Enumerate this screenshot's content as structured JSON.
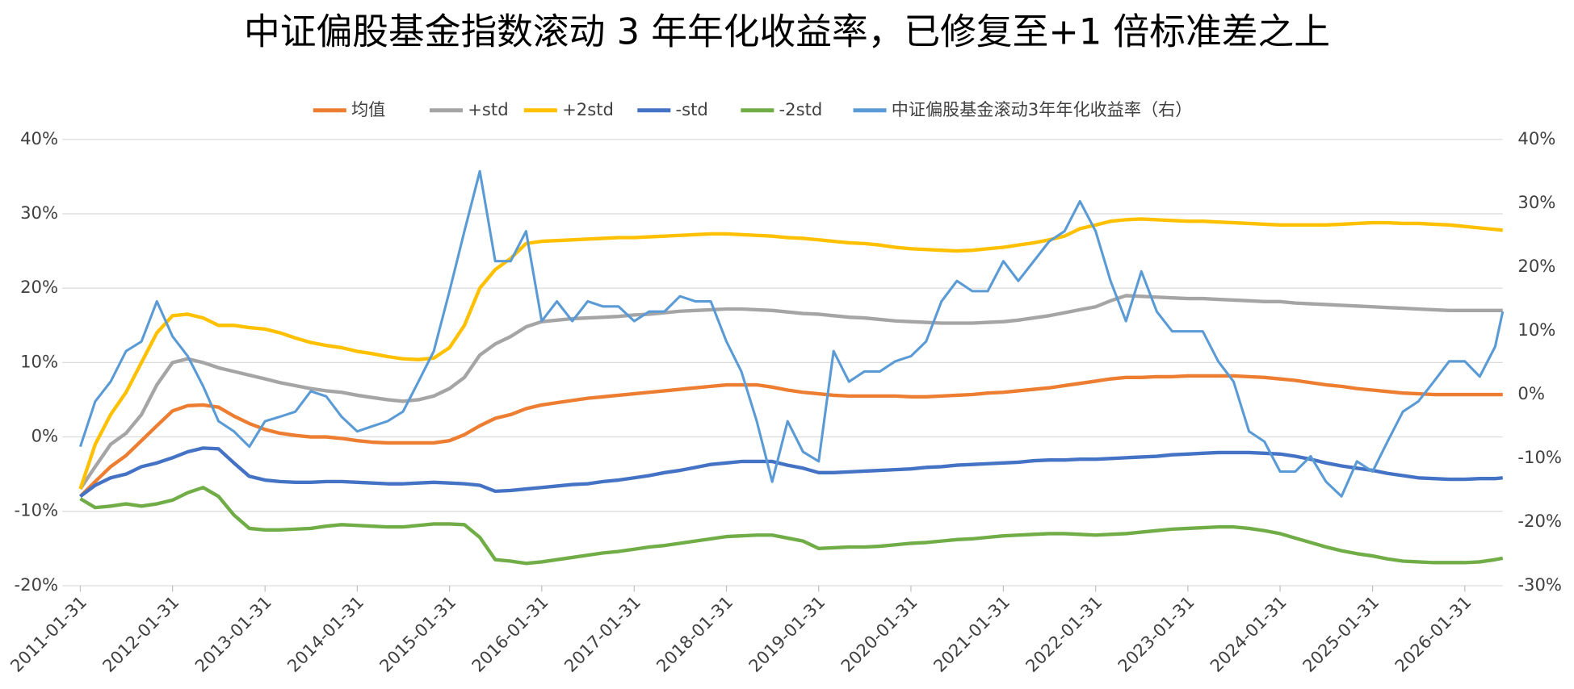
{
  "chart_data": {
    "type": "line",
    "title": "中证偏股基金指数滚动 3 年年化收益率，已修复至+1 倍标准差之上",
    "x": [
      "2011-01-31",
      "2011-03-31",
      "2011-05-31",
      "2011-07-31",
      "2011-09-30",
      "2011-11-30",
      "2012-01-31",
      "2012-03-31",
      "2012-05-31",
      "2012-07-31",
      "2012-09-30",
      "2012-11-30",
      "2013-01-31",
      "2013-03-31",
      "2013-05-31",
      "2013-07-31",
      "2013-09-30",
      "2013-11-30",
      "2014-01-31",
      "2014-03-31",
      "2014-05-31",
      "2014-07-31",
      "2014-09-30",
      "2014-11-30",
      "2015-01-31",
      "2015-03-31",
      "2015-05-31",
      "2015-07-31",
      "2015-09-30",
      "2015-11-30",
      "2016-01-31",
      "2016-03-31",
      "2016-05-31",
      "2016-07-31",
      "2016-09-30",
      "2016-11-30",
      "2017-01-31",
      "2017-03-31",
      "2017-05-31",
      "2017-07-31",
      "2017-09-30",
      "2017-11-30",
      "2018-01-31",
      "2018-03-31",
      "2018-05-31",
      "2018-07-31",
      "2018-09-30",
      "2018-11-30",
      "2019-01-31",
      "2019-03-31",
      "2019-05-31",
      "2019-07-31",
      "2019-09-30",
      "2019-11-30",
      "2020-01-31",
      "2020-03-31",
      "2020-05-31",
      "2020-07-31",
      "2020-09-30",
      "2020-11-30",
      "2021-01-31",
      "2021-03-31",
      "2021-05-31",
      "2021-07-31",
      "2021-09-30",
      "2021-11-30",
      "2022-01-31",
      "2022-03-31",
      "2022-05-31",
      "2022-07-31",
      "2022-09-30",
      "2022-11-30",
      "2023-01-31",
      "2023-03-31",
      "2023-05-31",
      "2023-07-31",
      "2023-09-30",
      "2023-11-30",
      "2024-01-31",
      "2024-03-31",
      "2024-05-31",
      "2024-07-31",
      "2024-09-30",
      "2024-11-30",
      "2025-01-31",
      "2025-03-31",
      "2025-05-31",
      "2025-07-31",
      "2025-09-30",
      "2025-11-30",
      "2026-01-31",
      "2026-03-31",
      "2026-05-31",
      "2026-06-30"
    ],
    "xlim": [
      "2011-01-31",
      "2026-06-30"
    ],
    "xticks": [
      "2011-01-31",
      "2012-01-31",
      "2013-01-31",
      "2014-01-31",
      "2015-01-31",
      "2016-01-31",
      "2017-01-31",
      "2018-01-31",
      "2019-01-31",
      "2020-01-31",
      "2021-01-31",
      "2022-01-31",
      "2023-01-31",
      "2024-01-31",
      "2025-01-31",
      "2026-01-31"
    ],
    "ylim": [
      -20,
      40
    ],
    "yticks": [
      {
        "value": -20,
        "label": "-20%"
      },
      {
        "value": -10,
        "label": "-10%"
      },
      {
        "value": 0,
        "label": "0%"
      },
      {
        "value": 10,
        "label": "10%"
      },
      {
        "value": 20,
        "label": "20%"
      },
      {
        "value": 30,
        "label": "30%"
      },
      {
        "value": 40,
        "label": "40%"
      }
    ],
    "y2lim": [
      -30,
      40
    ],
    "y2ticks": [
      {
        "value": -30,
        "label": "-30%"
      },
      {
        "value": -20,
        "label": "-20%"
      },
      {
        "value": -10,
        "label": "-10%"
      },
      {
        "value": 0,
        "label": "0%"
      },
      {
        "value": 10,
        "label": "10%"
      },
      {
        "value": 20,
        "label": "20%"
      },
      {
        "value": 30,
        "label": "30%"
      },
      {
        "value": 40,
        "label": "40%"
      }
    ],
    "grid": true,
    "legend": "top",
    "series": [
      {
        "name": "均值",
        "color": "#ED7D31",
        "values": [
          -8,
          -6,
          -4,
          -2.5,
          -0.5,
          1.5,
          3.5,
          4.2,
          4.3,
          4,
          2.8,
          1.8,
          1,
          0.5,
          0.2,
          0,
          0,
          -0.2,
          -0.5,
          -0.7,
          -0.8,
          -0.8,
          -0.8,
          -0.8,
          -0.5,
          0.3,
          1.5,
          2.5,
          3,
          3.8,
          4.3,
          4.6,
          4.9,
          5.2,
          5.4,
          5.6,
          5.8,
          6,
          6.2,
          6.4,
          6.6,
          6.8,
          7,
          7,
          7,
          6.7,
          6.3,
          6,
          5.8,
          5.6,
          5.5,
          5.5,
          5.5,
          5.5,
          5.4,
          5.4,
          5.5,
          5.6,
          5.7,
          5.9,
          6,
          6.2,
          6.4,
          6.6,
          6.9,
          7.2,
          7.5,
          7.8,
          8,
          8,
          8.1,
          8.1,
          8.2,
          8.2,
          8.2,
          8.2,
          8.1,
          8,
          7.8,
          7.6,
          7.3,
          7,
          6.8,
          6.5,
          6.3,
          6.1,
          5.9,
          5.8,
          5.7,
          5.7,
          5.7,
          5.7,
          5.7,
          5.7
        ]
      },
      {
        "name": "+std",
        "color": "#A5A5A5",
        "values": [
          -7,
          -4,
          -1,
          0.5,
          3,
          7,
          10,
          10.5,
          10,
          9.3,
          8.8,
          8.3,
          7.8,
          7.3,
          6.9,
          6.5,
          6.2,
          6,
          5.6,
          5.3,
          5,
          4.8,
          5,
          5.5,
          6.5,
          8,
          11,
          12.5,
          13.5,
          14.8,
          15.5,
          15.7,
          15.9,
          16,
          16.1,
          16.2,
          16.4,
          16.5,
          16.7,
          16.9,
          17,
          17.1,
          17.2,
          17.2,
          17.1,
          17,
          16.8,
          16.6,
          16.5,
          16.3,
          16.1,
          16,
          15.8,
          15.6,
          15.5,
          15.4,
          15.3,
          15.3,
          15.3,
          15.4,
          15.5,
          15.7,
          16,
          16.3,
          16.7,
          17.1,
          17.5,
          18.3,
          19,
          18.9,
          18.8,
          18.7,
          18.6,
          18.6,
          18.5,
          18.4,
          18.3,
          18.2,
          18.2,
          18,
          17.9,
          17.8,
          17.7,
          17.6,
          17.5,
          17.4,
          17.3,
          17.2,
          17.1,
          17,
          17,
          17,
          17,
          17
        ]
      },
      {
        "name": "+2std",
        "color": "#FFC000",
        "values": [
          -7,
          -1,
          3,
          6,
          10,
          14,
          16.3,
          16.5,
          16,
          15,
          15,
          14.7,
          14.5,
          14,
          13.3,
          12.7,
          12.3,
          12,
          11.5,
          11.2,
          10.8,
          10.5,
          10.4,
          10.6,
          12,
          15,
          20,
          22.5,
          24,
          26,
          26.3,
          26.4,
          26.5,
          26.6,
          26.7,
          26.8,
          26.8,
          26.9,
          27,
          27.1,
          27.2,
          27.3,
          27.3,
          27.2,
          27.1,
          27,
          26.8,
          26.7,
          26.5,
          26.3,
          26.1,
          26,
          25.8,
          25.5,
          25.3,
          25.2,
          25.1,
          25,
          25.1,
          25.3,
          25.5,
          25.8,
          26.1,
          26.5,
          27,
          28,
          28.5,
          29,
          29.2,
          29.3,
          29.2,
          29.1,
          29,
          29,
          28.9,
          28.8,
          28.7,
          28.6,
          28.5,
          28.5,
          28.5,
          28.5,
          28.6,
          28.7,
          28.8,
          28.8,
          28.7,
          28.7,
          28.6,
          28.5,
          28.3,
          28.1,
          27.9,
          27.8
        ]
      },
      {
        "name": "-std",
        "color": "#4472C4",
        "values": [
          -8,
          -6.5,
          -5.5,
          -5,
          -4,
          -3.5,
          -2.8,
          -2,
          -1.5,
          -1.6,
          -3.5,
          -5.3,
          -5.8,
          -6,
          -6.1,
          -6.1,
          -6,
          -6,
          -6.1,
          -6.2,
          -6.3,
          -6.3,
          -6.2,
          -6.1,
          -6.2,
          -6.3,
          -6.5,
          -7.3,
          -7.2,
          -7,
          -6.8,
          -6.6,
          -6.4,
          -6.3,
          -6,
          -5.8,
          -5.5,
          -5.2,
          -4.8,
          -4.5,
          -4.1,
          -3.7,
          -3.5,
          -3.3,
          -3.3,
          -3.3,
          -3.8,
          -4.2,
          -4.8,
          -4.8,
          -4.7,
          -4.6,
          -4.5,
          -4.4,
          -4.3,
          -4.1,
          -4,
          -3.8,
          -3.7,
          -3.6,
          -3.5,
          -3.4,
          -3.2,
          -3.1,
          -3.1,
          -3,
          -3,
          -2.9,
          -2.8,
          -2.7,
          -2.6,
          -2.4,
          -2.3,
          -2.2,
          -2.1,
          -2.1,
          -2.1,
          -2.2,
          -2.3,
          -2.6,
          -3,
          -3.5,
          -3.9,
          -4.2,
          -4.5,
          -4.9,
          -5.2,
          -5.5,
          -5.6,
          -5.7,
          -5.7,
          -5.6,
          -5.6,
          -5.5
        ]
      },
      {
        "name": "-2std",
        "color": "#70AD47",
        "values": [
          -8.3,
          -9.5,
          -9.3,
          -9,
          -9.3,
          -9,
          -8.5,
          -7.5,
          -6.8,
          -8,
          -10.5,
          -12.3,
          -12.5,
          -12.5,
          -12.4,
          -12.3,
          -12,
          -11.8,
          -11.9,
          -12,
          -12.1,
          -12.1,
          -11.9,
          -11.7,
          -11.7,
          -11.8,
          -13.5,
          -16.5,
          -16.7,
          -17,
          -16.8,
          -16.5,
          -16.2,
          -15.9,
          -15.6,
          -15.4,
          -15.1,
          -14.8,
          -14.6,
          -14.3,
          -14,
          -13.7,
          -13.4,
          -13.3,
          -13.2,
          -13.2,
          -13.6,
          -14,
          -15,
          -14.9,
          -14.8,
          -14.8,
          -14.7,
          -14.5,
          -14.3,
          -14.2,
          -14,
          -13.8,
          -13.7,
          -13.5,
          -13.3,
          -13.2,
          -13.1,
          -13,
          -13,
          -13.1,
          -13.2,
          -13.1,
          -13,
          -12.8,
          -12.6,
          -12.4,
          -12.3,
          -12.2,
          -12.1,
          -12.1,
          -12.3,
          -12.6,
          -13,
          -13.6,
          -14.2,
          -14.8,
          -15.3,
          -15.7,
          -16,
          -16.4,
          -16.7,
          -16.8,
          -16.9,
          -16.9,
          -16.9,
          -16.8,
          -16.5,
          -16.3
        ]
      },
      {
        "name": "中证偏股基金滚动3年年化收益率（右）",
        "color": "#5B9BD5",
        "axis": "y2",
        "values": [
          -8.2,
          -1.1,
          2,
          6.8,
          8.3,
          14.6,
          9.1,
          6,
          1.3,
          -4.2,
          -5.8,
          -8.2,
          -4.2,
          -3.5,
          -2.7,
          0.5,
          -0.3,
          -3.5,
          -5.8,
          -5,
          -4.2,
          -2.7,
          2,
          6.8,
          16.2,
          25.6,
          35,
          20.9,
          20.9,
          25.6,
          11.5,
          14.6,
          11.5,
          14.6,
          13.8,
          13.8,
          11.5,
          13,
          13,
          15.4,
          14.6,
          14.6,
          8.3,
          3.6,
          -4.2,
          -13.7,
          -4.2,
          -9,
          -10.5,
          6.8,
          2,
          3.6,
          3.6,
          5.2,
          6,
          8.3,
          14.6,
          17.8,
          16.2,
          16.2,
          20.9,
          17.8,
          20.9,
          24,
          25.6,
          30.3,
          25.6,
          17.8,
          11.5,
          19.3,
          13,
          9.9,
          9.9,
          9.9,
          5.2,
          2,
          -5.8,
          -7.4,
          -12.1,
          -12.1,
          -9.7,
          -13.7,
          -16,
          -10.5,
          -12.1,
          -7.4,
          -2.7,
          -1.1,
          2,
          5.2,
          5.2,
          2.8,
          7.5,
          13
        ]
      }
    ]
  }
}
